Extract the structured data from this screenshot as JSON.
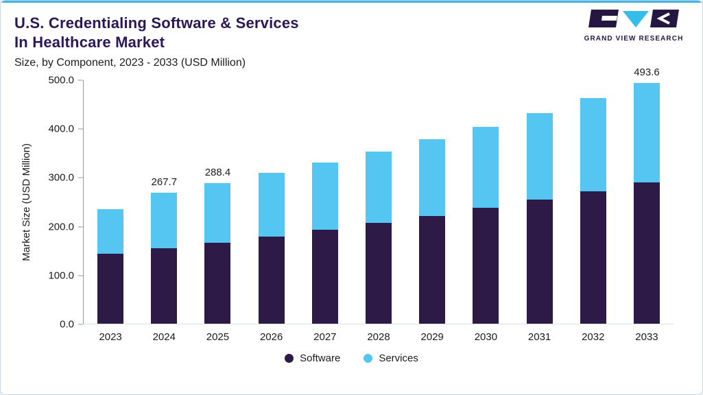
{
  "theme": {
    "accent_line": "#3fb4e5",
    "card_border": "#c7d6e0",
    "background": "#ffffff",
    "title_color": "#2b1656",
    "text_color": "#1a1a1a",
    "axis_color": "#8e99a5"
  },
  "header": {
    "title_line1": "U.S. Credentialing Software & Services",
    "title_line2": "In Healthcare Market",
    "subtitle": "Size, by Component, 2023 - 2033 (USD Million)"
  },
  "logo": {
    "text": "GRAND VIEW RESEARCH",
    "dark_color": "#241742",
    "cyan_color": "#35bdea"
  },
  "chart_data": {
    "type": "bar",
    "stacked": true,
    "title": "U.S. Credentialing Software & Services In Healthcare Market, Size, by Component, 2023 - 2033 (USD Million)",
    "ylabel": "Market Size (USD Million)",
    "ylim": [
      0,
      500
    ],
    "yticks": [
      0,
      100,
      200,
      300,
      400,
      500
    ],
    "ytick_labels": [
      "0.0",
      "100.0",
      "200.0",
      "300.0",
      "400.0",
      "500.0"
    ],
    "grid": false,
    "legend_position": "bottom",
    "categories": [
      "2023",
      "2024",
      "2025",
      "2026",
      "2027",
      "2028",
      "2029",
      "2030",
      "2031",
      "2032",
      "2033"
    ],
    "series": [
      {
        "name": "Software",
        "color": "#2e1a47",
        "values": [
          143.0,
          154.0,
          166.0,
          179.0,
          192.0,
          206.0,
          221.0,
          237.0,
          254.0,
          271.0,
          289.0
        ]
      },
      {
        "name": "Services",
        "color": "#55c6f2",
        "values": [
          92.0,
          113.7,
          122.4,
          129.4,
          137.9,
          146.8,
          156.3,
          166.5,
          177.5,
          190.5,
          204.6
        ]
      }
    ],
    "totals": [
      235.0,
      267.7,
      288.4,
      308.4,
      329.9,
      352.8,
      377.3,
      403.5,
      431.5,
      461.5,
      493.6
    ],
    "total_labels": [
      "",
      "267.7",
      "288.4",
      "",
      "",
      "",
      "",
      "",
      "",
      "",
      "493.6"
    ]
  }
}
